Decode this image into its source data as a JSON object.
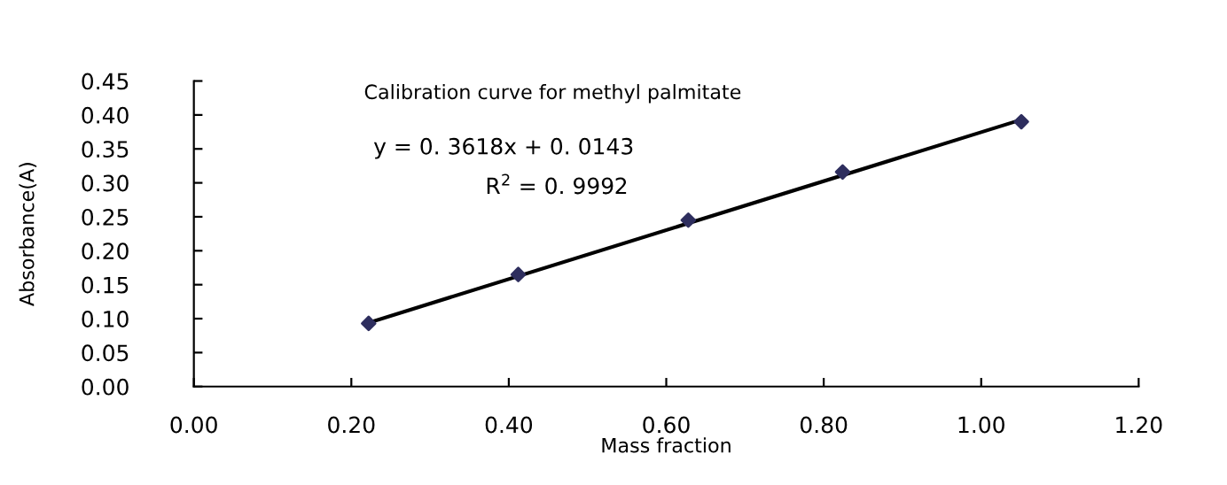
{
  "chart_data": {
    "type": "scatter",
    "title": "Calibration curve for methyl palmitate",
    "xlabel": "Mass fraction",
    "ylabel": "Absorbance(A)",
    "annotations": [
      "y = 0. 3618x + 0. 0143",
      "R$^{2}$ = 0. 9992"
    ],
    "series": [
      {
        "color": "#2e2e5e",
        "x": [
          0.222,
          0.412,
          0.628,
          0.824,
          1.051
        ],
        "values": [
          0.093,
          0.165,
          0.245,
          0.316,
          0.39
        ],
        "marker": "diamond"
      },
      {
        "type": "line",
        "color": "#000000",
        "x": [
          0.222,
          1.051
        ],
        "values": [
          0.094,
          0.393
        ],
        "line_style": "solid"
      }
    ],
    "xlim": [
      0,
      1.2
    ],
    "ylim": [
      0,
      0.45
    ],
    "xticks": [
      {
        "value": 0,
        "label": "0.00"
      },
      {
        "value": 0.2,
        "label": "0.20"
      },
      {
        "value": 0.4,
        "label": "0.40"
      },
      {
        "value": 0.6,
        "label": "0.60"
      },
      {
        "value": 0.8,
        "label": "0.80"
      },
      {
        "value": 1.0,
        "label": "1.00"
      },
      {
        "value": 1.2,
        "label": "1.20"
      }
    ],
    "yticks": [
      {
        "value": 0,
        "label": "0.00"
      },
      {
        "value": 0.05,
        "label": "0.05"
      },
      {
        "value": 0.1,
        "label": "0.10"
      },
      {
        "value": 0.15,
        "label": "0.15"
      },
      {
        "value": 0.2,
        "label": "0.20"
      },
      {
        "value": 0.25,
        "label": "0.25"
      },
      {
        "value": 0.3,
        "label": "0.30"
      },
      {
        "value": 0.35,
        "label": "0.35"
      },
      {
        "value": 0.4,
        "label": "0.40"
      },
      {
        "value": 0.45,
        "label": "0.45"
      }
    ],
    "grid": false,
    "legend": false
  }
}
